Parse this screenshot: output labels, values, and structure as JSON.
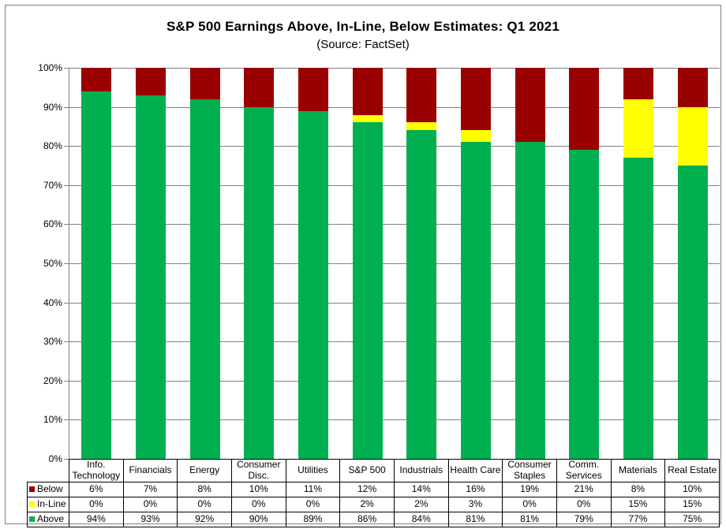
{
  "title": "S&P 500 Earnings Above, In-Line, Below Estimates: Q1 2021",
  "subtitle": "(Source: FactSet)",
  "chart_data": {
    "type": "bar",
    "stacked": true,
    "title": "S&P 500 Earnings Above, In-Line, Below Estimates: Q1 2021",
    "subtitle": "(Source: FactSet)",
    "categories": [
      "Info. Technology",
      "Financials",
      "Energy",
      "Consumer Disc.",
      "Utilities",
      "S&P 500",
      "Industrials",
      "Health Care",
      "Consumer Staples",
      "Comm. Services",
      "Materials",
      "Real Estate"
    ],
    "series": [
      {
        "name": "Above",
        "color": "#00B050",
        "values": [
          94,
          93,
          92,
          90,
          89,
          86,
          84,
          81,
          81,
          79,
          77,
          75
        ]
      },
      {
        "name": "In-Line",
        "color": "#FFFF00",
        "values": [
          0,
          0,
          0,
          0,
          0,
          2,
          2,
          3,
          0,
          0,
          15,
          15
        ]
      },
      {
        "name": "Below",
        "color": "#990000",
        "values": [
          6,
          7,
          8,
          10,
          11,
          12,
          14,
          16,
          19,
          21,
          8,
          10
        ]
      }
    ],
    "table_order": [
      "Below",
      "In-Line",
      "Above"
    ],
    "y_ticks": [
      "0%",
      "10%",
      "20%",
      "30%",
      "40%",
      "50%",
      "60%",
      "70%",
      "80%",
      "90%",
      "100%"
    ],
    "ylim": [
      0,
      100
    ],
    "value_suffix": "%",
    "grid_on": true,
    "grid_color": "#808080",
    "legend_position": "table-left"
  }
}
